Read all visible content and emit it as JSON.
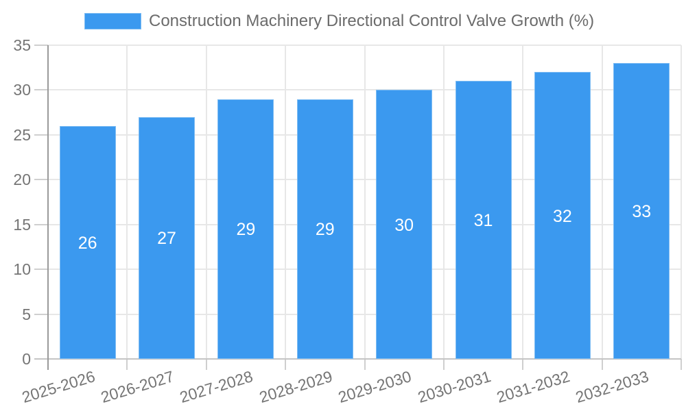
{
  "legend": {
    "label": "Construction Machinery Directional Control Valve Growth (%)"
  },
  "colors": {
    "bar_fill": "#3B99EF",
    "bar_border": "#7FBDF3",
    "grid": "#E7E7E7",
    "tick": "#CFCFCF",
    "axis": "#9A9A9A",
    "baseline": "#C4C4C4",
    "title_text": "#6B6B6B",
    "tick_text": "#757575",
    "value_text": "#FFFFFF",
    "background": "#FFFFFF"
  },
  "chart_data": {
    "type": "bar",
    "title": "Construction Machinery Directional Control Valve Growth (%)",
    "categories": [
      "2025-2026",
      "2026-2027",
      "2027-2028",
      "2028-2029",
      "2029-2030",
      "2030-2031",
      "2031-2032",
      "2032-2033"
    ],
    "series": [
      {
        "name": "Construction Machinery Directional Control Valve Growth (%)",
        "values": [
          26,
          27,
          29,
          29,
          30,
          31,
          32,
          33
        ]
      }
    ],
    "ylim": [
      0,
      35
    ],
    "ytick_step": 5,
    "yticks": [
      0,
      5,
      10,
      15,
      20,
      25,
      30,
      35
    ],
    "grid": true,
    "legend_position": "top",
    "value_labels": "inside-center",
    "x_label_rotation_deg": -17
  }
}
